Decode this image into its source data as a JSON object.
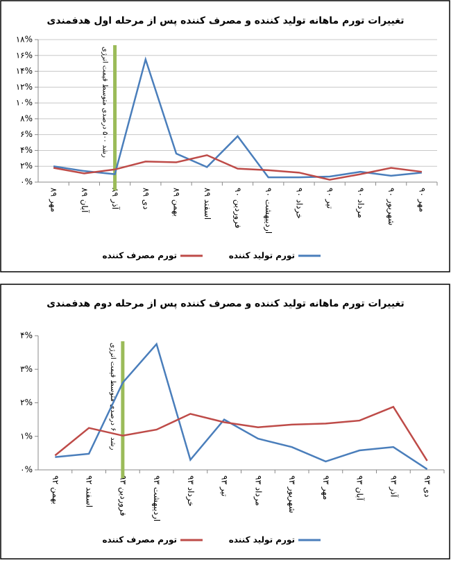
{
  "chart_data": [
    {
      "type": "line",
      "title": "تغییرات تورم ماهانه تولید کننده و مصرف کننده پس از مرحله اول هدفمندی",
      "categories": [
        "مهر ۸۹",
        "آبان ۸۹",
        "آذر ۸۹",
        "دی ۸۹",
        "بهمن ۸۹",
        "اسفند ۸۹",
        "فروردین ۹۰",
        "اردیبهشت ۹۰",
        "خرداد ۹۰",
        "تیر ۹۰",
        "مرداد ۹۰",
        "شهریور ۹۰",
        "مهر ۹۰"
      ],
      "series": [
        {
          "name": "تورم تولید کننده",
          "color": "#4a7ebb",
          "values": [
            2.0,
            1.4,
            1.0,
            15.5,
            3.6,
            1.9,
            5.8,
            0.6,
            0.6,
            0.7,
            1.3,
            0.8,
            1.2
          ]
        },
        {
          "name": "تورم مصرف کننده",
          "color": "#be4b48",
          "values": [
            1.8,
            1.1,
            1.6,
            2.6,
            2.5,
            3.4,
            1.7,
            1.5,
            1.2,
            0.3,
            1.0,
            1.8,
            1.3
          ]
        }
      ],
      "ylim": [
        0,
        18
      ],
      "yticks": [
        {
          "value": 0,
          "label": "۰%"
        },
        {
          "value": 2,
          "label": "۲%"
        },
        {
          "value": 4,
          "label": "۴%"
        },
        {
          "value": 6,
          "label": "۶%"
        },
        {
          "value": 8,
          "label": "۸%"
        },
        {
          "value": 10,
          "label": "۱۰%"
        },
        {
          "value": 12,
          "label": "۱۲%"
        },
        {
          "value": 14,
          "label": "۱۴%"
        },
        {
          "value": 16,
          "label": "۱۶%"
        },
        {
          "value": 18,
          "label": "۱۸%"
        }
      ],
      "grid": true,
      "legend": "bottom",
      "annotation": {
        "text": "رشد ۵۰۰ درصدی متوسط قیمت انرژی",
        "x": "آذر ۸۹",
        "color": "#9bbb59"
      }
    },
    {
      "type": "line",
      "title": "تغییرات تورم ماهانه تولید کننده و مصرف کننده پس از مرحله دوم هدفمندی",
      "categories": [
        "بهمن ۹۲",
        "اسفند ۹۲",
        "فروردین ۹۳",
        "اردیبهشت ۹۳",
        "خرداد ۹۳",
        "تیر ۹۳",
        "مرداد ۹۳",
        "شهریور ۹۳",
        "مهر ۹۳",
        "آبان ۹۳",
        "آذر ۹۳",
        "دی ۹۳"
      ],
      "series": [
        {
          "name": "تورم تولید کننده",
          "color": "#4a7ebb",
          "values": [
            0.38,
            0.48,
            2.6,
            3.75,
            0.3,
            1.5,
            0.93,
            0.68,
            0.25,
            0.58,
            0.68,
            0.02
          ]
        },
        {
          "name": "تورم مصرف کننده",
          "color": "#be4b48",
          "values": [
            0.43,
            1.25,
            1.02,
            1.2,
            1.67,
            1.42,
            1.27,
            1.35,
            1.38,
            1.47,
            1.88,
            0.27
          ]
        }
      ],
      "ylim": [
        0,
        4
      ],
      "yticks": [
        {
          "value": 0,
          "label": "۰%"
        },
        {
          "value": 1,
          "label": "۱%"
        },
        {
          "value": 2,
          "label": "۲%"
        },
        {
          "value": 3,
          "label": "۳%"
        },
        {
          "value": 4,
          "label": "۴%"
        }
      ],
      "grid": false,
      "legend": "bottom",
      "annotation": {
        "text": "رشد ۶۰ درصدی متوسط قیمت انرژی",
        "x": "فروردین ۹۳",
        "color": "#9bbb59"
      }
    }
  ]
}
